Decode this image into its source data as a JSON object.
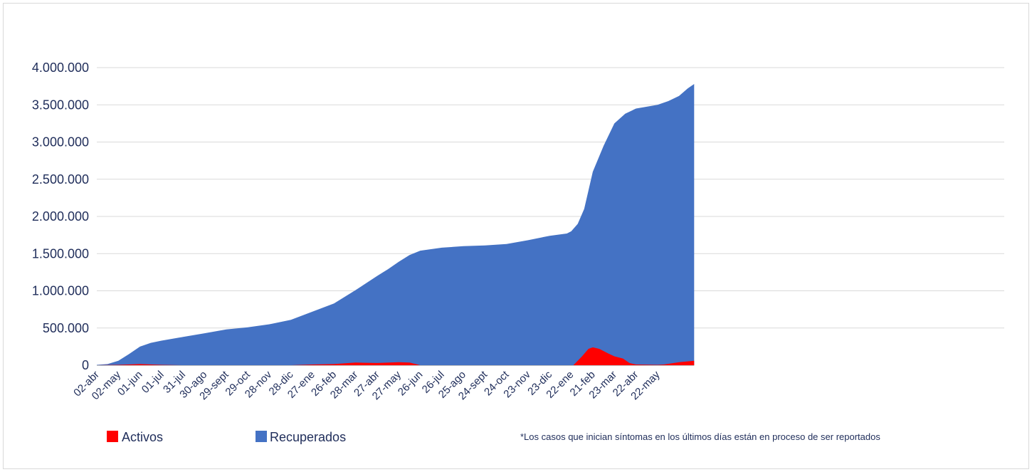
{
  "chart_data": {
    "type": "area",
    "stacked": false,
    "grid": true,
    "legend_position": "bottom-left",
    "ylim": [
      0,
      4000000
    ],
    "y_ticks": [
      0,
      500000,
      1000000,
      1500000,
      2000000,
      2500000,
      3000000,
      3500000,
      4000000
    ],
    "y_tick_labels": [
      "0",
      "500.000",
      "1.000.000",
      "1.500.000",
      "2.000.000",
      "2.500.000",
      "3.000.000",
      "3.500.000",
      "4.000.000"
    ],
    "x_tick_labels": [
      "02-abr",
      "02-may",
      "01-jun",
      "01-jul",
      "31-jul",
      "30-ago",
      "29-sept",
      "29-oct",
      "28-nov",
      "28-dic",
      "27-ene",
      "26-feb",
      "28-mar",
      "27-abr",
      "27-may",
      "26-jun",
      "26-jul",
      "25-ago",
      "24-sept",
      "24-oct",
      "23-nov",
      "23-dic",
      "22-ene",
      "21-feb",
      "23-mar",
      "22-abr",
      "22-may"
    ],
    "x_end": 27.7,
    "series": [
      {
        "name": "Recuperados",
        "color": "#4472c4",
        "points": [
          [
            0,
            5000
          ],
          [
            0.5,
            15000
          ],
          [
            1,
            60000
          ],
          [
            1.5,
            150000
          ],
          [
            2,
            250000
          ],
          [
            2.5,
            300000
          ],
          [
            3,
            330000
          ],
          [
            4,
            380000
          ],
          [
            5,
            430000
          ],
          [
            6,
            480000
          ],
          [
            7,
            510000
          ],
          [
            8,
            550000
          ],
          [
            9,
            610000
          ],
          [
            10,
            720000
          ],
          [
            11,
            830000
          ],
          [
            12,
            1010000
          ],
          [
            13,
            1200000
          ],
          [
            13.5,
            1290000
          ],
          [
            14,
            1390000
          ],
          [
            14.5,
            1480000
          ],
          [
            15,
            1540000
          ],
          [
            16,
            1580000
          ],
          [
            17,
            1600000
          ],
          [
            18,
            1610000
          ],
          [
            19,
            1630000
          ],
          [
            20,
            1680000
          ],
          [
            21,
            1740000
          ],
          [
            21.8,
            1770000
          ],
          [
            22,
            1800000
          ],
          [
            22.3,
            1900000
          ],
          [
            22.6,
            2100000
          ],
          [
            23,
            2600000
          ],
          [
            23.5,
            2950000
          ],
          [
            24,
            3250000
          ],
          [
            24.5,
            3380000
          ],
          [
            25,
            3450000
          ],
          [
            26,
            3500000
          ],
          [
            26.5,
            3550000
          ],
          [
            27,
            3620000
          ],
          [
            27.4,
            3720000
          ],
          [
            27.7,
            3780000
          ]
        ]
      },
      {
        "name": "Activos",
        "color": "#ff0000",
        "points": [
          [
            0,
            0
          ],
          [
            1,
            5000
          ],
          [
            2,
            15000
          ],
          [
            3,
            5000
          ],
          [
            4,
            0
          ],
          [
            9,
            0
          ],
          [
            10,
            10000
          ],
          [
            11,
            15000
          ],
          [
            12,
            35000
          ],
          [
            13,
            30000
          ],
          [
            14,
            40000
          ],
          [
            14.5,
            35000
          ],
          [
            15,
            0
          ],
          [
            22.1,
            0
          ],
          [
            22.5,
            120000
          ],
          [
            22.8,
            220000
          ],
          [
            23,
            240000
          ],
          [
            23.3,
            220000
          ],
          [
            23.7,
            160000
          ],
          [
            24,
            120000
          ],
          [
            24.4,
            90000
          ],
          [
            24.7,
            30000
          ],
          [
            25,
            10000
          ],
          [
            26,
            5000
          ],
          [
            26.3,
            10000
          ],
          [
            27,
            40000
          ],
          [
            27.7,
            60000
          ]
        ]
      }
    ],
    "legend": [
      {
        "label": "Activos",
        "color": "#ff0000"
      },
      {
        "label": "Recuperados",
        "color": "#4472c4"
      }
    ],
    "note": "*Los casos que inician síntomas en los últimos días están en proceso de ser reportados"
  }
}
